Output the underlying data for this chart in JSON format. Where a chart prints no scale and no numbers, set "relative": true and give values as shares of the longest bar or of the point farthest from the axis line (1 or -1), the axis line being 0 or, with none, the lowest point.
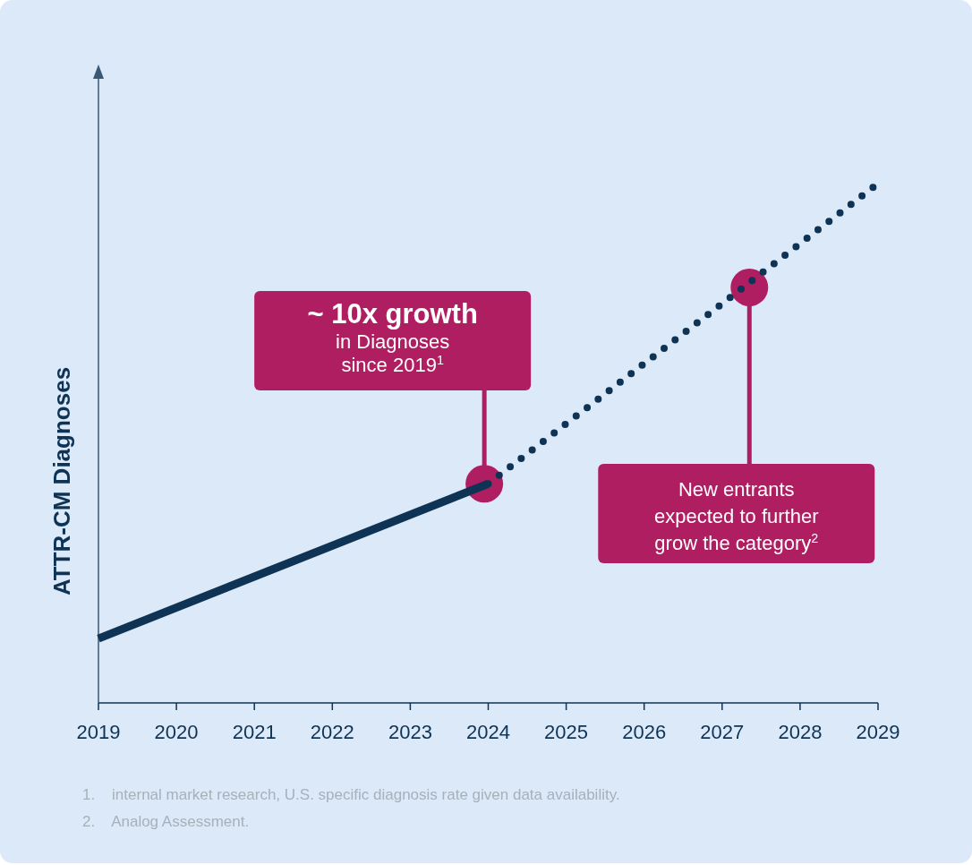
{
  "chart_data": {
    "type": "line",
    "relative": true,
    "ylabel": "ATTR-CM Diagnoses",
    "xlim": [
      2019,
      2029
    ],
    "xticks": [
      2019,
      2020,
      2021,
      2022,
      2023,
      2024,
      2025,
      2026,
      2027,
      2028,
      2029
    ],
    "grid": false,
    "series": [
      {
        "color": "#0e3354",
        "line_style": "solid",
        "x": [
          2019,
          2024
        ],
        "values": [
          0.124,
          0.422
        ]
      },
      {
        "color": "#0e3354",
        "line_style": "dotted",
        "x": [
          2024,
          2029
        ],
        "values": [
          0.422,
          1.0
        ]
      }
    ],
    "annotations": [
      {
        "text": "~ 10x growth\nin Diagnoses\nsince 2019$^{1}$",
        "x": 2023.95,
        "y": 0.422
      },
      {
        "text": "New entrants\nexpected to further\ngrow the category$^{2}$",
        "x": 2027.35,
        "y": 0.8
      },
      "1.    internal market research, U.S. specific diagnosis rate given data availability.",
      "2.    Analog Assessment."
    ]
  }
}
